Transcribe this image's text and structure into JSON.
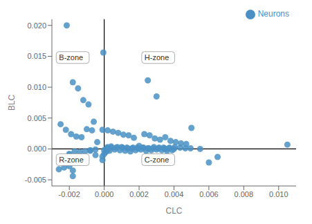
{
  "chart_data": {
    "type": "scatter",
    "title": "",
    "xlabel": "CLC",
    "ylabel": "BLC",
    "xlim": [
      -0.003,
      0.011
    ],
    "ylim": [
      -0.006,
      0.021
    ],
    "xticks": [
      -0.002,
      {
        "value": 0,
        "label": "0.000"
      },
      0.002,
      0.004,
      0.006,
      0.008,
      {
        "value": 0.01,
        "label": "0.010"
      }
    ],
    "yticks": [
      -0.005,
      {
        "value": 0,
        "label": "0.000"
      },
      0.005,
      {
        "value": 0.01,
        "label": "0.010"
      },
      0.015,
      {
        "value": 0.02,
        "label": "0.020"
      }
    ],
    "grid": false,
    "legend": "upper right",
    "vlines": [
      0
    ],
    "hlines": [
      0
    ],
    "annotations": [
      {
        "text": "B-zone",
        "x": -0.00275,
        "y": 0.0148
      },
      {
        "text": "H-zone",
        "x": 0.00215,
        "y": 0.0148
      },
      {
        "text": "R-zone",
        "x": -0.00275,
        "y": -0.00175
      },
      {
        "text": "C-zone",
        "x": 0.00215,
        "y": -0.00175
      }
    ],
    "x": [
      -0.00215,
      -5e-05,
      -0.0018,
      -0.0015,
      -0.0012,
      -0.0009,
      -0.0006,
      -0.0025,
      -0.0022,
      -0.0019,
      -0.0016,
      -0.0013,
      -0.001,
      -0.0007,
      -0.0004,
      -0.0001,
      0.0002,
      0.0005,
      0.0008,
      0.0011,
      0.0014,
      0.0017,
      0.002,
      0.0023,
      0.0026,
      0.0029,
      0.0032,
      0.0035,
      0.0038,
      0.0041,
      0.0044,
      0.0047,
      -0.002,
      -0.0005,
      -0.0001,
      0.0,
      0.0001,
      0.0003,
      0.0006,
      0.0009,
      0.0012,
      0.0015,
      0.0018,
      0.0021,
      0.0024,
      0.0027,
      0.003,
      0.0033,
      0.0036,
      0.0039,
      0.0002,
      0.0004,
      0.0007,
      0.001,
      0.0013,
      0.0016,
      0.0019,
      0.0022,
      0.0025,
      0.0028,
      0.0031,
      0.0034,
      0.0037,
      -0.0008,
      -0.0011,
      -0.0014,
      -0.0017,
      -0.002,
      -0.0023,
      -0.0026,
      0.005,
      0.0055,
      0.006,
      0.0065,
      0.0105,
      -0.0005,
      -0.0008,
      0.00015,
      0.00045,
      0.00075,
      0.00105,
      0.00135,
      0.00165,
      0.00195,
      0.00225,
      0.00255,
      0.00285,
      0.00315,
      0.00345,
      0.00375,
      0.00405,
      0.00435,
      0.00465,
      0.00495,
      -0.0012,
      -0.0015,
      -0.0018,
      0.0,
      0.0001,
      0.0002,
      -0.0023,
      -0.0001,
      0.0035,
      0.004,
      -0.002,
      -0.0018,
      0.0025,
      0.003
    ],
    "series": [
      {
        "name": "Neurons",
        "color": "#4a90c4",
        "values": [
          0.02,
          0.0156,
          0.0108,
          0.0098,
          0.0079,
          0.0072,
          0.0044,
          0.004,
          0.0031,
          0.0024,
          0.002,
          0.0019,
          0.0032,
          0.003,
          0.0011,
          0.0031,
          0.003,
          0.0028,
          0.0026,
          0.0023,
          0.0022,
          0.0018,
          0.0005,
          0.0024,
          0.0022,
          0.0017,
          0.0015,
          0.0019,
          0.0013,
          0.0011,
          0.0009,
          0.0008,
          -0.001,
          -0.001,
          -0.0012,
          -0.0008,
          -0.0005,
          -0.0003,
          -0.0001,
          -0.0002,
          -0.0003,
          -0.0004,
          -0.0002,
          -0.0001,
          -0.0003,
          -0.0002,
          -0.0001,
          -0.0002,
          -0.0003,
          -0.0002,
          0.0003,
          0.0004,
          0.0002,
          0.0003,
          0.0002,
          0.0001,
          0.0002,
          0.0002,
          0.0001,
          0.0001,
          0.0001,
          0.0002,
          0.0001,
          -0.0003,
          -0.0004,
          -0.0005,
          -0.0004,
          -0.0008,
          -0.002,
          -0.0033,
          0.0034,
          0.0,
          -0.0022,
          -0.0013,
          0.0007,
          -0.0001,
          -0.0002,
          0.0001,
          0.0002,
          0.0003,
          0.0002,
          0.0001,
          0.0002,
          0.0001,
          0.0002,
          0.0001,
          0.0003,
          0.0002,
          0.0001,
          0.0002,
          0.0003,
          0.0002,
          0.0001,
          0.0001,
          -0.002,
          -0.0013,
          -0.0035,
          -0.0002,
          0.0,
          -0.0001,
          -0.003,
          -0.0018,
          0.0,
          0.0,
          -0.0028,
          -0.0044,
          0.0111,
          0.0085
        ]
      }
    ]
  }
}
